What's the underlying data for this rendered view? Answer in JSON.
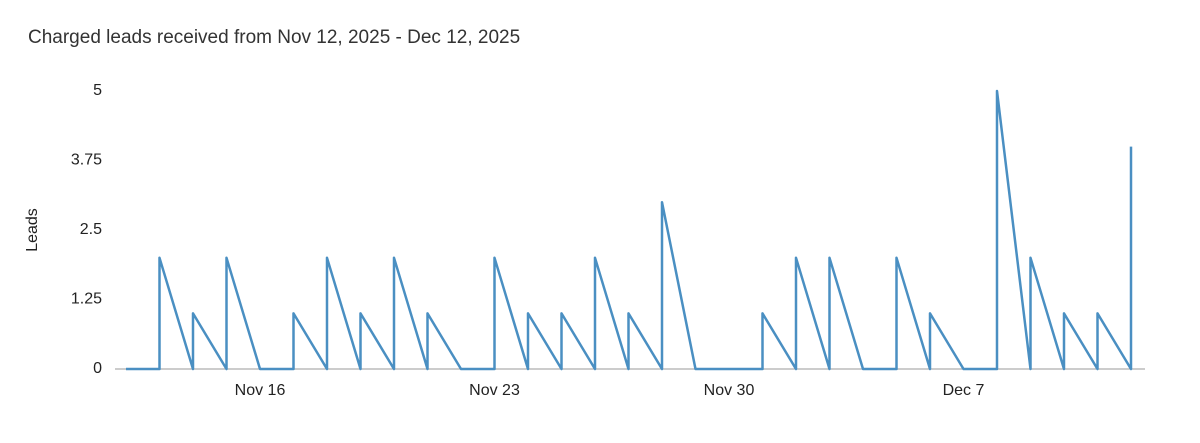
{
  "chart_data": {
    "type": "line",
    "title": "Charged leads received from Nov 12, 2025 - Dec 12, 2025",
    "y_label": "Leads",
    "x": [
      "2025-11-12",
      "2025-11-13",
      "2025-11-13",
      "2025-11-14",
      "2025-11-14",
      "2025-11-15",
      "2025-11-15",
      "2025-11-16",
      "2025-11-17",
      "2025-11-17",
      "2025-11-18",
      "2025-11-18",
      "2025-11-19",
      "2025-11-19",
      "2025-11-20",
      "2025-11-20",
      "2025-11-21",
      "2025-11-21",
      "2025-11-22",
      "2025-11-23",
      "2025-11-23",
      "2025-11-24",
      "2025-11-24",
      "2025-11-25",
      "2025-11-25",
      "2025-11-26",
      "2025-11-26",
      "2025-11-27",
      "2025-11-27",
      "2025-11-28",
      "2025-11-28",
      "2025-11-29",
      "2025-11-30",
      "2025-12-01",
      "2025-12-01",
      "2025-12-02",
      "2025-12-02",
      "2025-12-03",
      "2025-12-03",
      "2025-12-04",
      "2025-12-05",
      "2025-12-05",
      "2025-12-06",
      "2025-12-06",
      "2025-12-07",
      "2025-12-08",
      "2025-12-08",
      "2025-12-09",
      "2025-12-09",
      "2025-12-10",
      "2025-12-10",
      "2025-12-11",
      "2025-12-11",
      "2025-12-12",
      "2025-12-12"
    ],
    "series": [
      {
        "name": "Leads",
        "color": "#4a8fc2",
        "values": [
          0,
          0,
          2,
          0,
          1,
          0,
          2,
          0,
          0,
          1,
          0,
          2,
          0,
          1,
          0,
          2,
          0,
          1,
          0,
          0,
          2,
          0,
          1,
          0,
          1,
          0,
          2,
          0,
          1,
          0,
          3,
          0,
          0,
          0,
          1,
          0,
          2,
          0,
          2,
          0,
          0,
          2,
          0,
          1,
          0,
          0,
          5,
          0,
          2,
          0,
          1,
          0,
          1,
          0,
          4
        ]
      }
    ],
    "xlim": [
      "2025-11-12",
      "2025-12-12"
    ],
    "xticks": [
      {
        "value": "2025-11-16",
        "label": "Nov 16"
      },
      {
        "value": "2025-11-23",
        "label": "Nov 23"
      },
      {
        "value": "2025-11-30",
        "label": "Nov 30"
      },
      {
        "value": "2025-12-07",
        "label": "Dec 7"
      }
    ],
    "ylim": [
      0,
      5
    ],
    "yticks": [
      0,
      1.25,
      2.5,
      3.75,
      5
    ],
    "grid": false
  }
}
